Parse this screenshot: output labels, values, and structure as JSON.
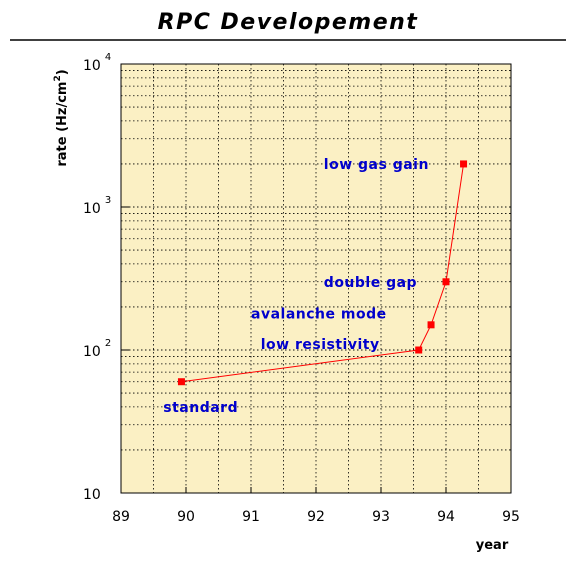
{
  "chart_data": {
    "type": "line",
    "title": "RPC Developement",
    "xlabel": "year",
    "ylabel": "rate (Hz/cm",
    "ylabel_sup": "2",
    "ylabel_close": ")",
    "xlim": [
      89,
      95
    ],
    "ylim": [
      10,
      10000
    ],
    "y_scale": "log",
    "x_ticks": [
      "89",
      "90",
      "91",
      "92",
      "93",
      "94",
      "95"
    ],
    "y_ticks": [
      {
        "base": "10",
        "exp": ""
      },
      {
        "base": "10",
        "exp": "2"
      },
      {
        "base": "10",
        "exp": "3"
      },
      {
        "base": "10",
        "exp": "4"
      }
    ],
    "grid": true,
    "series": [
      {
        "x": [
          89.93,
          93.58,
          93.77,
          94.0,
          94.27
        ],
        "y": [
          60,
          100,
          150,
          300,
          2000
        ]
      }
    ],
    "annotations": [
      {
        "text": "low gas gain",
        "x": 92.12,
        "y": 2000
      },
      {
        "text": "double gap",
        "x": 92.12,
        "y": 300
      },
      {
        "text": "avalanche mode",
        "x": 91.0,
        "y": 180
      },
      {
        "text": "low resistivity",
        "x": 91.15,
        "y": 110
      },
      {
        "text": "standard",
        "x": 89.65,
        "y": 40
      }
    ],
    "colors": {
      "background": "#fbf0c4",
      "line": "#ff0000",
      "marker": "#ff0000",
      "annotation": "#0000cc",
      "grid": "#000000"
    }
  }
}
